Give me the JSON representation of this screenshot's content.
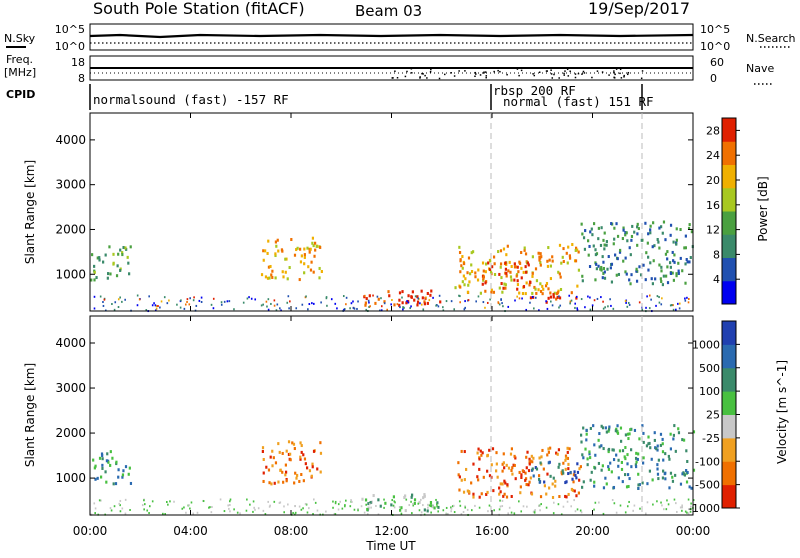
{
  "header": {
    "title": "South Pole Station (fitACF)",
    "beam": "Beam 03",
    "date": "19/Sep/2017"
  },
  "top_panels": {
    "nsky_label": "N.Sky",
    "nsearch_label": "N.Search",
    "noise_ticks": [
      "10^5",
      "10^0"
    ],
    "noise_ticks_right": [
      "10^5",
      "10^0"
    ],
    "freq_label_1": "Freq.",
    "freq_label_2": "[MHz]",
    "freq_ticks": [
      "18",
      "8"
    ],
    "nave_label": "Nave",
    "nave_ticks": [
      "60",
      "0"
    ],
    "cpid_label": "CPID"
  },
  "cpid": [
    {
      "start_hour": 0,
      "end_hour": 16,
      "text": "normalsound (fast) -157 RF"
    },
    {
      "start_hour": 16,
      "end_hour": 22,
      "text": "rbsp 200 RF",
      "text2": "normal (fast) 151 RF"
    }
  ],
  "x_axis": {
    "label": "Time UT",
    "ticks": [
      "00:00",
      "04:00",
      "08:00",
      "12:00",
      "16:00",
      "20:00",
      "00:00"
    ]
  },
  "chart_data": [
    {
      "type": "heatmap",
      "title": "",
      "xlabel": "Time UT",
      "ylabel": "Slant Range [km]",
      "xlim": [
        0,
        24
      ],
      "ylim": [
        180,
        4600
      ],
      "yticks": [
        "1000",
        "2000",
        "3000",
        "4000"
      ],
      "colorbar": {
        "label": "Power [dB]",
        "ticks": [
          "4",
          "8",
          "12",
          "16",
          "20",
          "24",
          "28"
        ],
        "range": [
          0,
          30
        ],
        "colors": [
          "#0000f0",
          "#2050b0",
          "#3a8a6a",
          "#4aa040",
          "#a8c820",
          "#f0b000",
          "#f07000",
          "#e02000"
        ]
      },
      "regions": [
        {
          "t0": 0.0,
          "t1": 1.6,
          "r0": 900,
          "r1": 1650,
          "level": 3
        },
        {
          "t0": 6.8,
          "t1": 9.2,
          "r0": 900,
          "r1": 1850,
          "level": 5
        },
        {
          "t0": 10.8,
          "t1": 14.0,
          "r0": 300,
          "r1": 700,
          "level": 7
        },
        {
          "t0": 14.5,
          "t1": 19.5,
          "r0": 600,
          "r1": 1700,
          "level": 5
        },
        {
          "t0": 15.5,
          "t1": 17.5,
          "r0": 700,
          "r1": 1300,
          "level": 7
        },
        {
          "t0": 17.5,
          "t1": 19.5,
          "r0": 400,
          "r1": 650,
          "level": 7
        },
        {
          "t0": 19.5,
          "t1": 24.0,
          "r0": 800,
          "r1": 2200,
          "level": 2
        }
      ]
    },
    {
      "type": "heatmap",
      "title": "",
      "xlabel": "Time UT",
      "ylabel": "Slant Range [km]",
      "xlim": [
        0,
        24
      ],
      "ylim": [
        180,
        4600
      ],
      "yticks": [
        "1000",
        "2000",
        "3000",
        "4000"
      ],
      "colorbar": {
        "label": "Velocity [m s^-1]",
        "ticks": [
          "1000",
          "500",
          "100",
          "25",
          "-25",
          "-100",
          "-500",
          "-1000"
        ],
        "range": [
          -1200,
          1200
        ],
        "colors": [
          "#e02000",
          "#f07000",
          "#f0a020",
          "#c8c8c8",
          "#48c040",
          "#3a8a6a",
          "#2a6ab0",
          "#2040b0"
        ]
      },
      "regions": [
        {
          "t0": 0.0,
          "t1": 1.6,
          "r0": 900,
          "r1": 1650,
          "level": 5
        },
        {
          "t0": 6.8,
          "t1": 9.2,
          "r0": 900,
          "r1": 1850,
          "level": 1
        },
        {
          "t0": 10.8,
          "t1": 14.0,
          "r0": 300,
          "r1": 700,
          "level": 4
        },
        {
          "t0": 14.5,
          "t1": 19.5,
          "r0": 600,
          "r1": 1700,
          "level": 1
        },
        {
          "t0": 17.5,
          "t1": 19.5,
          "r0": 900,
          "r1": 1400,
          "level": 6
        },
        {
          "t0": 19.5,
          "t1": 24.0,
          "r0": 800,
          "r1": 2200,
          "level": 5
        }
      ]
    }
  ]
}
